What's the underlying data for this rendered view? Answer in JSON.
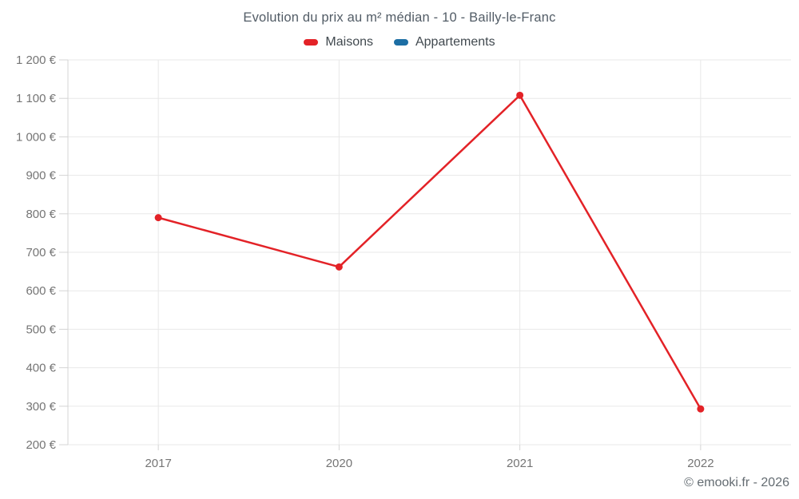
{
  "title": "Evolution du prix au m² médian - 10 - Bailly-le-Franc",
  "legend": {
    "items": [
      {
        "label": "Maisons",
        "color": "#e32227"
      },
      {
        "label": "Appartements",
        "color": "#1c6ea4"
      }
    ]
  },
  "attribution": "© emooki.fr - 2026",
  "chart_data": {
    "type": "line",
    "title": "Evolution du prix au m² médian - 10 - Bailly-le-Franc",
    "categories": [
      "2017",
      "2020",
      "2021",
      "2022"
    ],
    "series": [
      {
        "name": "Maisons",
        "color": "#e32227",
        "values": [
          790,
          662,
          1108,
          293
        ]
      },
      {
        "name": "Appartements",
        "color": "#1c6ea4",
        "values": []
      }
    ],
    "xlabel": "",
    "ylabel": "",
    "ylim": [
      200,
      1200
    ],
    "ytick_step": 100,
    "ytick_labels": [
      "200 €",
      "300 €",
      "400 €",
      "500 €",
      "600 €",
      "700 €",
      "800 €",
      "900 €",
      "1 000 €",
      "1 100 €",
      "1 200 €"
    ],
    "grid": true,
    "legend_position": "top"
  },
  "colors": {
    "grid": "#e8e8e8",
    "axis": "#d4d4d4",
    "tick_text": "#757575",
    "title_text": "#525c66",
    "legend_text": "#41494f",
    "attribution_text": "#646c72",
    "background": "#ffffff"
  }
}
